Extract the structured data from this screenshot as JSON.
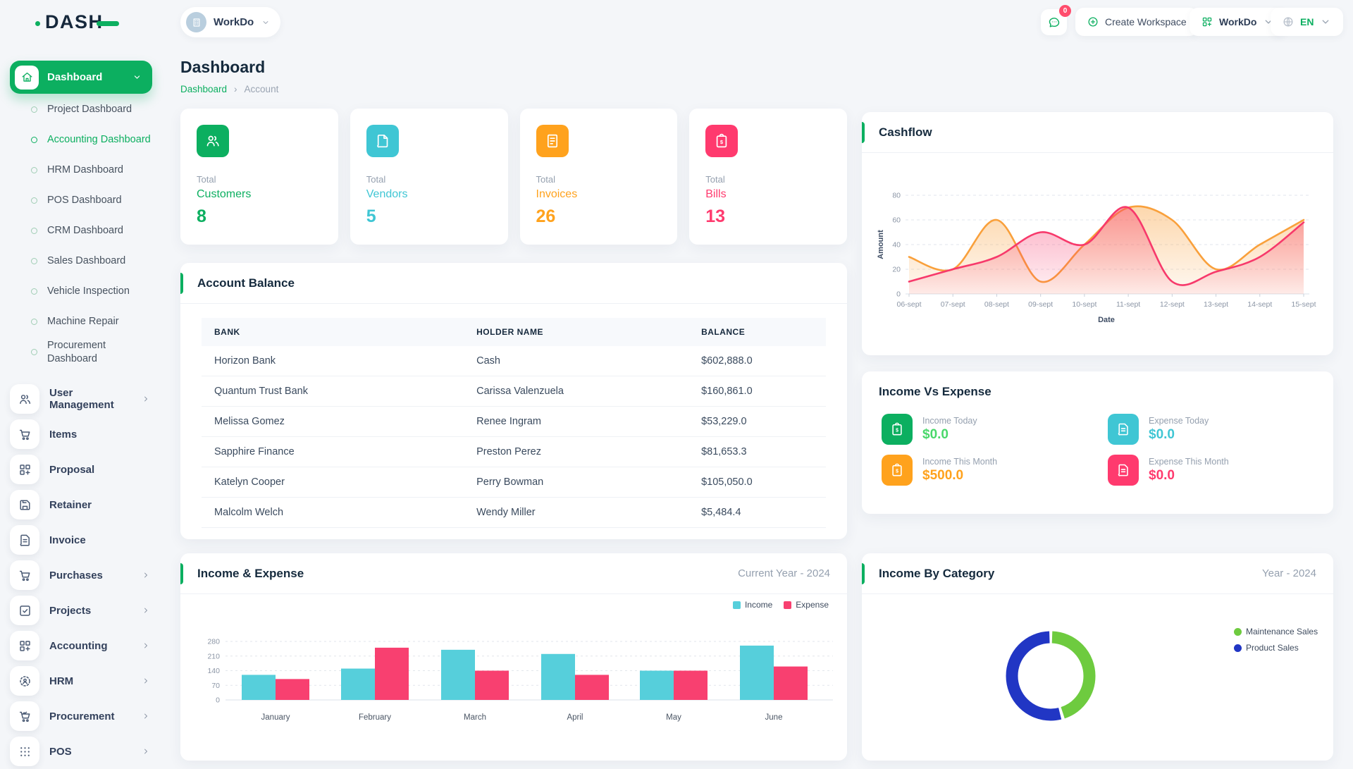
{
  "app": {
    "logo_text": "DASH"
  },
  "topbar": {
    "workspace_label": "WorkDo",
    "notification_count": "0",
    "create_workspace_label": "Create Workspace",
    "workdo_label": "WorkDo",
    "language": "EN"
  },
  "sidebar": {
    "dashboard_label": "Dashboard",
    "sub_items": [
      {
        "label": "Project Dashboard",
        "active": false
      },
      {
        "label": "Accounting Dashboard",
        "active": true
      },
      {
        "label": "HRM Dashboard",
        "active": false
      },
      {
        "label": "POS Dashboard",
        "active": false
      },
      {
        "label": "CRM Dashboard",
        "active": false
      },
      {
        "label": "Sales Dashboard",
        "active": false
      },
      {
        "label": "Vehicle Inspection",
        "active": false
      },
      {
        "label": "Machine Repair",
        "active": false
      },
      {
        "label": "Procurement Dashboard",
        "active": false
      }
    ],
    "items": [
      {
        "label": "User Management",
        "icon": "users",
        "chevron": true
      },
      {
        "label": "Items",
        "icon": "cart",
        "chevron": false
      },
      {
        "label": "Proposal",
        "icon": "grid-plus",
        "chevron": false
      },
      {
        "label": "Retainer",
        "icon": "save",
        "chevron": false
      },
      {
        "label": "Invoice",
        "icon": "doc-lines",
        "chevron": false
      },
      {
        "label": "Purchases",
        "icon": "cart",
        "chevron": true
      },
      {
        "label": "Projects",
        "icon": "check-square",
        "chevron": true
      },
      {
        "label": "Accounting",
        "icon": "grid-plus",
        "chevron": true
      },
      {
        "label": "HRM",
        "icon": "target-user",
        "chevron": true
      },
      {
        "label": "Procurement",
        "icon": "cart-chart",
        "chevron": true
      },
      {
        "label": "POS",
        "icon": "dots-grid",
        "chevron": true
      }
    ]
  },
  "page": {
    "title": "Dashboard",
    "breadcrumb": [
      "Dashboard",
      "Account"
    ],
    "breadcrumb_separator": "›"
  },
  "stats": [
    {
      "total_label": "Total",
      "label": "Customers",
      "value": "8",
      "color": "#0caf60",
      "icon": "user-group"
    },
    {
      "total_label": "Total",
      "label": "Vendors",
      "value": "5",
      "color": "#3fc6d4",
      "icon": "note"
    },
    {
      "total_label": "Total",
      "label": "Invoices",
      "value": "26",
      "color": "#ffa21d",
      "icon": "invoice"
    },
    {
      "total_label": "Total",
      "label": "Bills",
      "value": "13",
      "color": "#ff3a6e",
      "icon": "clipboard-dollar"
    }
  ],
  "account_balance": {
    "title": "Account Balance",
    "columns": [
      "BANK",
      "HOLDER NAME",
      "BALANCE"
    ],
    "rows": [
      {
        "bank": "Horizon Bank",
        "holder": "Cash",
        "balance": "$602,888.0"
      },
      {
        "bank": "Quantum Trust Bank",
        "holder": "Carissa Valenzuela",
        "balance": "$160,861.0"
      },
      {
        "bank": "Melissa Gomez",
        "holder": "Renee Ingram",
        "balance": "$53,229.0"
      },
      {
        "bank": "Sapphire Finance",
        "holder": "Preston Perez",
        "balance": "$81,653.3"
      },
      {
        "bank": "Katelyn Cooper",
        "holder": "Perry Bowman",
        "balance": "$105,050.0"
      },
      {
        "bank": "Malcolm Welch",
        "holder": "Wendy Miller",
        "balance": "$5,484.4"
      }
    ]
  },
  "income_vs_expense": {
    "title": "Income Vs Expense",
    "items": [
      {
        "label": "Income Today",
        "value": "$0.0",
        "color": "#0caf60",
        "value_color": "#49d86a",
        "icon": "clipboard-dollar"
      },
      {
        "label": "Expense Today",
        "value": "$0.0",
        "color": "#3fc6d4",
        "value_color": "#3fc6d4",
        "icon": "doc-lines"
      },
      {
        "label": "Income This Month",
        "value": "$500.0",
        "color": "#ffa21d",
        "value_color": "#ffa21d",
        "icon": "clipboard-dollar"
      },
      {
        "label": "Expense This Month",
        "value": "$0.0",
        "color": "#ff3a6e",
        "value_color": "#ff3a6e",
        "icon": "doc-lines"
      }
    ]
  },
  "chart_data": [
    {
      "id": "cashflow",
      "type": "area",
      "title": "Cashflow",
      "x": [
        "06-sept",
        "07-sept",
        "08-sept",
        "09-sept",
        "10-sept",
        "11-sept",
        "12-sept",
        "13-sept",
        "14-sept",
        "15-sept"
      ],
      "xlabel": "Date",
      "ylabel": "Amount",
      "ylim": [
        0,
        80
      ],
      "yticks": [
        0,
        20,
        40,
        60,
        80
      ],
      "grid": true,
      "series": [
        {
          "name": "series-orange",
          "color": "#f9a03b",
          "values": [
            30,
            20,
            60,
            10,
            40,
            70,
            60,
            20,
            40,
            60
          ]
        },
        {
          "name": "series-pink",
          "color": "#f7396b",
          "values": [
            10,
            20,
            30,
            50,
            40,
            70,
            10,
            18,
            30,
            58
          ]
        }
      ]
    },
    {
      "id": "income-expense",
      "type": "bar",
      "title": "Income & Expense",
      "period_label": "Current Year - 2024",
      "categories": [
        "January",
        "February",
        "March",
        "April",
        "May",
        "June"
      ],
      "ylim": [
        0,
        280
      ],
      "yticks": [
        0,
        70,
        140,
        210,
        280
      ],
      "legend_position": "top-right",
      "grid": true,
      "series": [
        {
          "name": "Income",
          "color": "#56cfdb",
          "values": [
            120,
            150,
            240,
            220,
            140,
            260
          ]
        },
        {
          "name": "Expense",
          "color": "#f84070",
          "values": [
            100,
            250,
            140,
            120,
            140,
            160
          ]
        }
      ]
    },
    {
      "id": "income-by-category",
      "type": "pie",
      "donut": true,
      "title": "Income By Category",
      "period_label": "Year - 2024",
      "labels": [
        "Maintenance Sales",
        "Product Sales"
      ],
      "values": [
        45.5,
        54.5
      ],
      "colors": [
        "#6ecb3f",
        "#2136c4"
      ],
      "legend_position": "right"
    }
  ]
}
